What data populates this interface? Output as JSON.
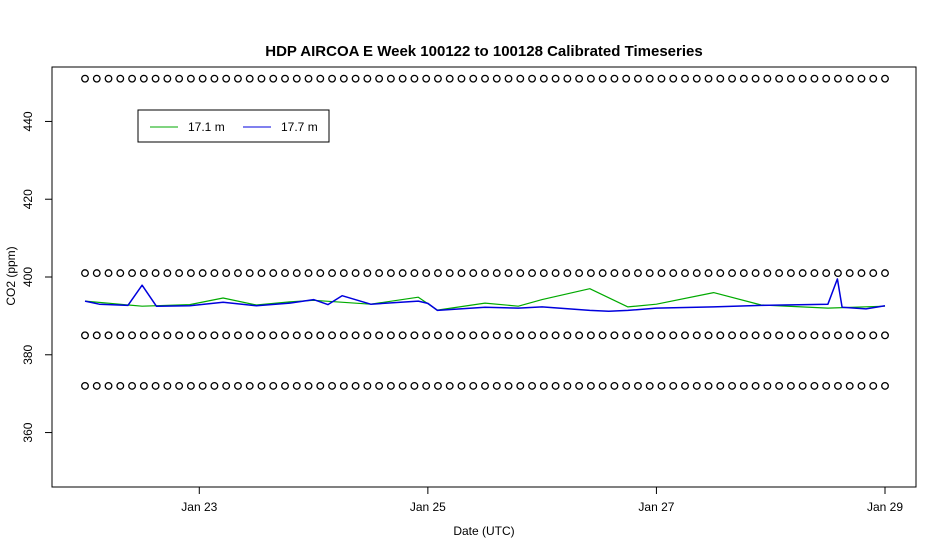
{
  "chart_data": {
    "type": "line",
    "title": "HDP AIRCOA E  Week 100122 to 100128  Calibrated Timeseries",
    "xlabel": "Date (UTC)",
    "ylabel": "CO2 (ppm)",
    "x_unit": "days",
    "xlim": [
      "2010-01-22",
      "2010-01-29"
    ],
    "ylim": [
      346,
      454
    ],
    "x_ticks": [
      "Jan 23",
      "Jan 25",
      "Jan 27",
      "Jan 29"
    ],
    "x_tick_values": [
      "2010-01-23",
      "2010-01-25",
      "2010-01-27",
      "2010-01-29"
    ],
    "y_ticks": [
      360,
      380,
      400,
      420,
      440
    ],
    "grid": false,
    "legend": {
      "position": "top-left",
      "entries": [
        "17.1 m",
        "17.7 m"
      ]
    },
    "series": [
      {
        "name": "17.1 m",
        "color": "#00aa00",
        "points": [
          [
            "2010-01-22 00:00",
            393.8
          ],
          [
            "2010-01-22 12:00",
            392.5
          ],
          [
            "2010-01-22 22:00",
            392.9
          ],
          [
            "2010-01-23 05:00",
            394.6
          ],
          [
            "2010-01-23 12:00",
            392.8
          ],
          [
            "2010-01-23 19:00",
            393.6
          ],
          [
            "2010-01-24 00:00",
            394.0
          ],
          [
            "2010-01-24 12:00",
            393.0
          ],
          [
            "2010-01-24 22:00",
            394.8
          ],
          [
            "2010-01-25 02:00",
            391.5
          ],
          [
            "2010-01-25 12:00",
            393.3
          ],
          [
            "2010-01-25 19:00",
            392.5
          ],
          [
            "2010-01-26 00:00",
            394.2
          ],
          [
            "2010-01-26 10:00",
            397.0
          ],
          [
            "2010-01-26 18:00",
            392.3
          ],
          [
            "2010-01-27 00:00",
            393.0
          ],
          [
            "2010-01-27 12:00",
            396.0
          ],
          [
            "2010-01-27 22:00",
            392.8
          ],
          [
            "2010-01-28 12:00",
            392.0
          ],
          [
            "2010-01-29 00:00",
            392.5
          ]
        ]
      },
      {
        "name": "17.7 m",
        "color": "#0000dd",
        "points": [
          [
            "2010-01-22 00:00",
            393.8
          ],
          [
            "2010-01-22 03:00",
            393.0
          ],
          [
            "2010-01-22 09:00",
            392.7
          ],
          [
            "2010-01-22 12:00",
            397.9
          ],
          [
            "2010-01-22 15:00",
            392.5
          ],
          [
            "2010-01-22 22:00",
            392.6
          ],
          [
            "2010-01-23 05:00",
            393.5
          ],
          [
            "2010-01-23 12:00",
            392.6
          ],
          [
            "2010-01-23 19:00",
            393.3
          ],
          [
            "2010-01-24 00:00",
            394.2
          ],
          [
            "2010-01-24 03:00",
            392.9
          ],
          [
            "2010-01-24 06:00",
            395.2
          ],
          [
            "2010-01-24 12:00",
            393.0
          ],
          [
            "2010-01-24 22:00",
            393.8
          ],
          [
            "2010-01-25 00:00",
            393.2
          ],
          [
            "2010-01-25 02:00",
            391.4
          ],
          [
            "2010-01-25 12:00",
            392.2
          ],
          [
            "2010-01-25 19:00",
            392.0
          ],
          [
            "2010-01-26 00:00",
            392.3
          ],
          [
            "2010-01-26 10:00",
            391.4
          ],
          [
            "2010-01-26 14:00",
            391.2
          ],
          [
            "2010-01-26 18:00",
            391.4
          ],
          [
            "2010-01-27 00:00",
            392.0
          ],
          [
            "2010-01-27 12:00",
            392.3
          ],
          [
            "2010-01-27 22:00",
            392.7
          ],
          [
            "2010-01-28 12:00",
            393.0
          ],
          [
            "2010-01-28 14:00",
            399.5
          ],
          [
            "2010-01-28 15:00",
            392.2
          ],
          [
            "2010-01-28 20:00",
            391.8
          ],
          [
            "2010-01-29 00:00",
            392.6
          ]
        ]
      }
    ],
    "marker_rows": [
      451,
      401,
      385,
      372
    ]
  }
}
